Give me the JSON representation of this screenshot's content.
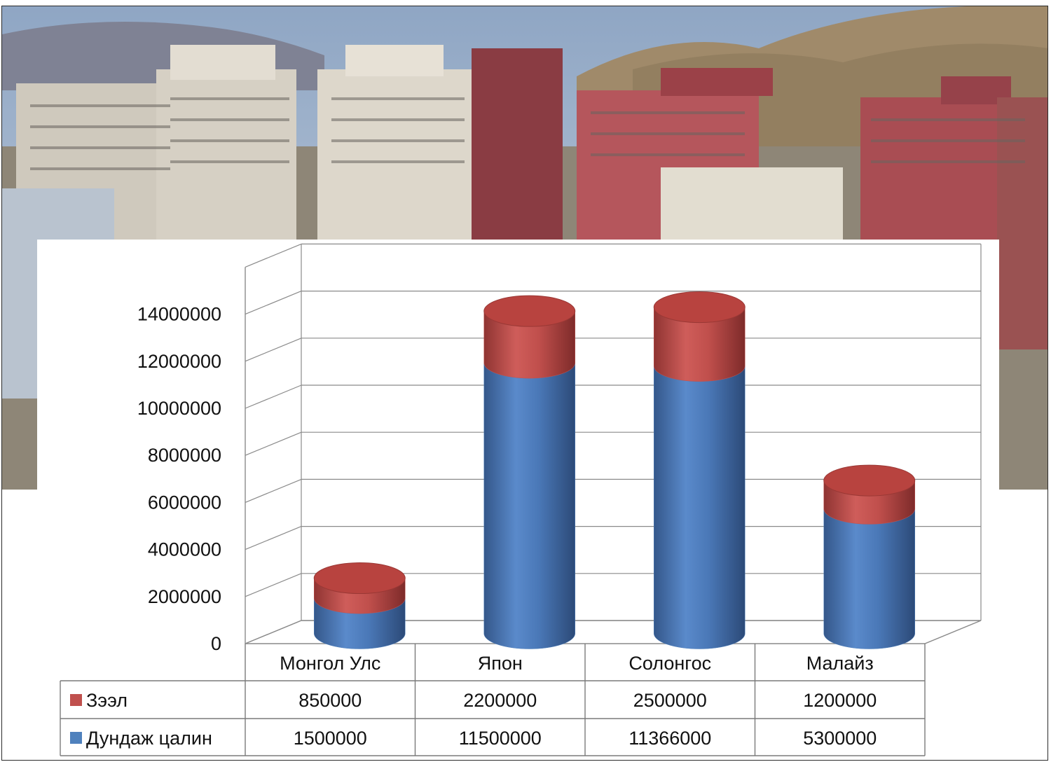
{
  "colors": {
    "loan": "#c0504d",
    "salary": "#4f81bd"
  },
  "chart_data": {
    "type": "bar",
    "stacked": true,
    "style": "3d-cylinder",
    "categories": [
      "Монгол Улс",
      "Япон",
      "Солонгос",
      "Малайз"
    ],
    "series": [
      {
        "name": "Дундаж цалин",
        "values": [
          1500000,
          11500000,
          11366000,
          5300000
        ]
      },
      {
        "name": "Зээл",
        "values": [
          850000,
          2200000,
          2500000,
          1200000
        ]
      }
    ],
    "yticks": [
      "0",
      "2000000",
      "4000000",
      "6000000",
      "8000000",
      "10000000",
      "12000000",
      "14000000"
    ],
    "ylim": [
      0,
      16000000
    ],
    "grid": true,
    "legend": "data-table"
  }
}
